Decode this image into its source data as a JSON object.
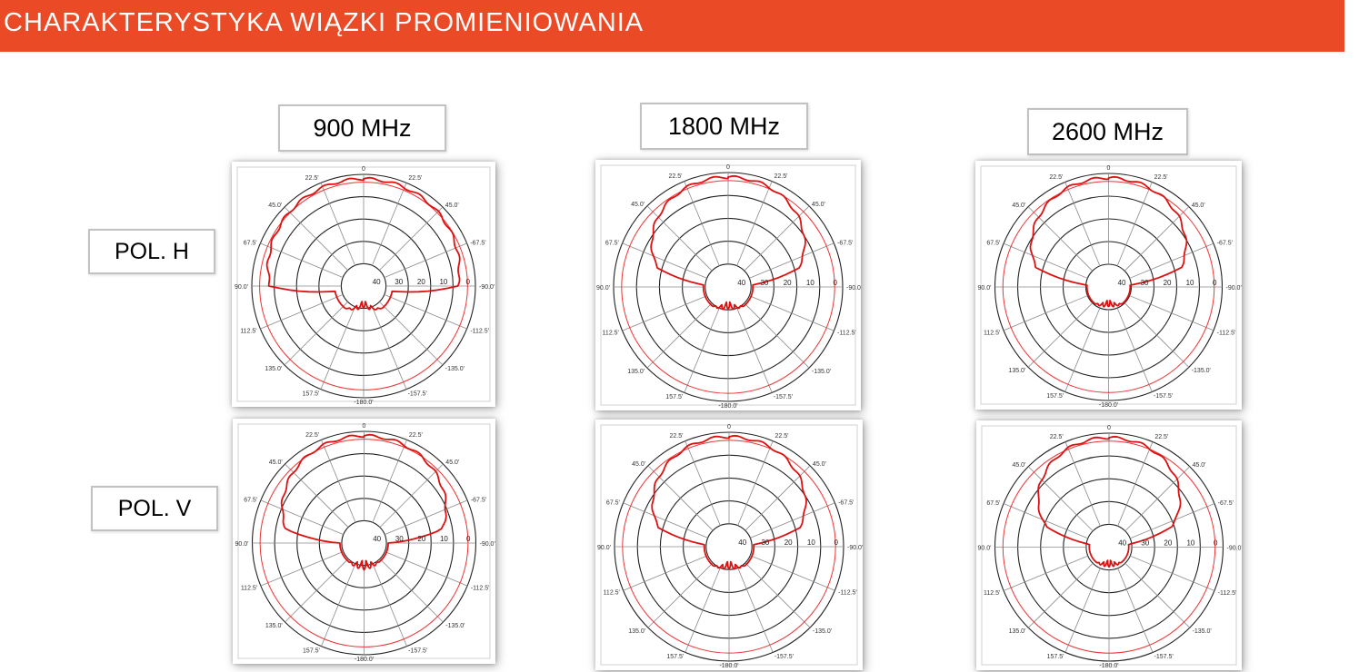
{
  "header": {
    "title": "CHARAKTERYSTYKA WIĄZKI PROMIENIOWANIA"
  },
  "colors": {
    "header_bg": "#ea4a25",
    "pattern": "#dd1111",
    "reference": "#ee3333",
    "grid_ring": "#222222",
    "grid_spoke": "#8a8a8a"
  },
  "columns": [
    {
      "label": "900 MHz"
    },
    {
      "label": "1800 MHz"
    },
    {
      "label": "2600 MHz"
    }
  ],
  "rows": [
    {
      "label": "POL. H"
    },
    {
      "label": "POL. V"
    }
  ],
  "plot_labels": {
    "angles_top": [
      "22.5'",
      "0",
      "22.5'"
    ],
    "angles": [
      "22.5'",
      "45.0'",
      "67.5'",
      "90.0'",
      "112.5'",
      "135.0'",
      "157.5'",
      "-180.0'",
      "-157.5'",
      "-135.0'",
      "-112.5'",
      "-90.0'",
      "-67.5'",
      "45.0'"
    ],
    "rings": [
      "40",
      "30",
      "20",
      "10",
      "0"
    ]
  },
  "chart_data": [
    {
      "type": "polar",
      "frequency": "900 MHz",
      "polarization": "POL. H",
      "pattern_shape": {
        "main_half_width_deg": 90,
        "main_edge": 0.82,
        "main_floor": 0.3,
        "back_level": 0.2,
        "back_lobes": 3
      }
    },
    {
      "type": "polar",
      "frequency": "1800 MHz",
      "polarization": "POL. H",
      "pattern_shape": {
        "main_half_width_deg": 75,
        "main_edge": 0.55,
        "main_floor": 0.25,
        "back_level": 0.2,
        "back_lobes": 3
      }
    },
    {
      "type": "polar",
      "frequency": "2600 MHz",
      "polarization": "POL. H",
      "pattern_shape": {
        "main_half_width_deg": 75,
        "main_edge": 0.6,
        "main_floor": 0.22,
        "back_level": 0.18,
        "back_lobes": 3
      }
    },
    {
      "type": "polar",
      "frequency": "900 MHz",
      "polarization": "POL. V",
      "pattern_shape": {
        "main_half_width_deg": 80,
        "main_edge": 0.65,
        "main_floor": 0.25,
        "back_level": 0.25,
        "back_lobes": 3
      }
    },
    {
      "type": "polar",
      "frequency": "1800 MHz",
      "polarization": "POL. V",
      "pattern_shape": {
        "main_half_width_deg": 75,
        "main_edge": 0.55,
        "main_floor": 0.25,
        "back_level": 0.2,
        "back_lobes": 3
      }
    },
    {
      "type": "polar",
      "frequency": "2600 MHz",
      "polarization": "POL. V",
      "pattern_shape": {
        "main_half_width_deg": 72,
        "main_edge": 0.5,
        "main_floor": 0.2,
        "back_level": 0.18,
        "back_lobes": 3
      }
    }
  ]
}
